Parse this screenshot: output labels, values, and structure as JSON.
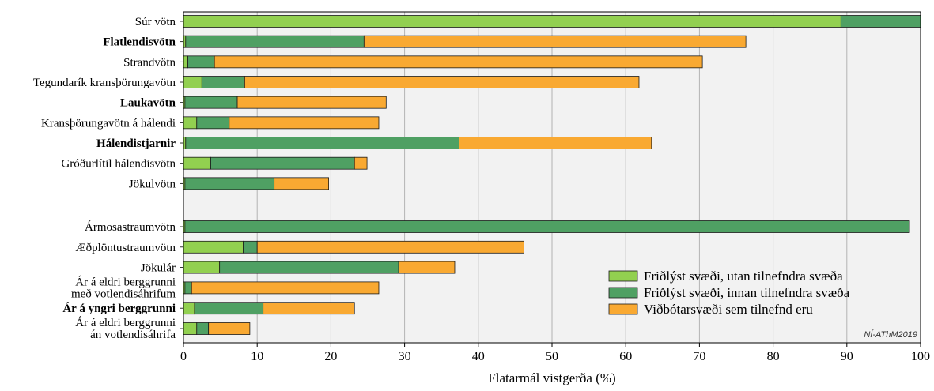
{
  "chart_data": {
    "type": "bar",
    "orientation": "horizontal",
    "stacked": true,
    "title": "",
    "xlabel": "Flatarmál vistgerða (%)",
    "ylabel": "",
    "xlim": [
      0,
      100
    ],
    "x_ticks": [
      0,
      10,
      20,
      30,
      40,
      50,
      60,
      70,
      80,
      90,
      100
    ],
    "grid": "vertical",
    "legend_position": "bottom-right",
    "watermark": "NÍ-AThM2019",
    "categories": [
      {
        "label": [
          "Súr vötn"
        ],
        "bold": false
      },
      {
        "label": [
          "Flatlendisvötn"
        ],
        "bold": true
      },
      {
        "label": [
          "Strandvötn"
        ],
        "bold": false
      },
      {
        "label": [
          "Tegundarík kransþörungavötn"
        ],
        "bold": false
      },
      {
        "label": [
          "Laukavötn"
        ],
        "bold": true
      },
      {
        "label": [
          "Kransþörungavötn á hálendi"
        ],
        "bold": false
      },
      {
        "label": [
          "Hálendistjarnir"
        ],
        "bold": true
      },
      {
        "label": [
          "Gróðurlítil hálendisvötn"
        ],
        "bold": false
      },
      {
        "label": [
          "Jökulvötn"
        ],
        "bold": false
      },
      {
        "label": [
          "Ármosastraumvötn"
        ],
        "bold": false
      },
      {
        "label": [
          "Æðplöntustraumvötn"
        ],
        "bold": false
      },
      {
        "label": [
          "Jökulár"
        ],
        "bold": false
      },
      {
        "label": [
          "Ár á eldri berggrunni",
          "með votlendisáhrifum"
        ],
        "bold": false
      },
      {
        "label": [
          "Ár á yngri berggrunni"
        ],
        "bold": true
      },
      {
        "label": [
          "Ár á eldri berggrunni",
          "án votlendisáhrifa"
        ],
        "bold": false
      }
    ],
    "series": [
      {
        "name": "Friðlýst svæði, utan tilnefndra svæða",
        "color": "#92d050",
        "values": [
          89.2,
          0.3,
          0.6,
          2.5,
          0.2,
          1.8,
          0.3,
          3.7,
          0.2,
          0.2,
          8.1,
          4.9,
          0.2,
          1.5,
          1.8
        ]
      },
      {
        "name": "Friðlýst svæði, innan tilnefndra svæða",
        "color": "#4fa063",
        "values": [
          10.8,
          24.2,
          3.6,
          5.8,
          7.1,
          4.4,
          37.1,
          19.5,
          12.1,
          98.3,
          1.9,
          24.3,
          0.9,
          9.3,
          1.6
        ]
      },
      {
        "name": "Viðbótarsvæði sem tilnefnd eru",
        "color": "#f9a932",
        "values": [
          0,
          51.8,
          66.2,
          53.5,
          20.2,
          20.3,
          26.1,
          1.7,
          7.4,
          0,
          36.2,
          7.6,
          25.4,
          12.4,
          5.6
        ]
      }
    ]
  }
}
